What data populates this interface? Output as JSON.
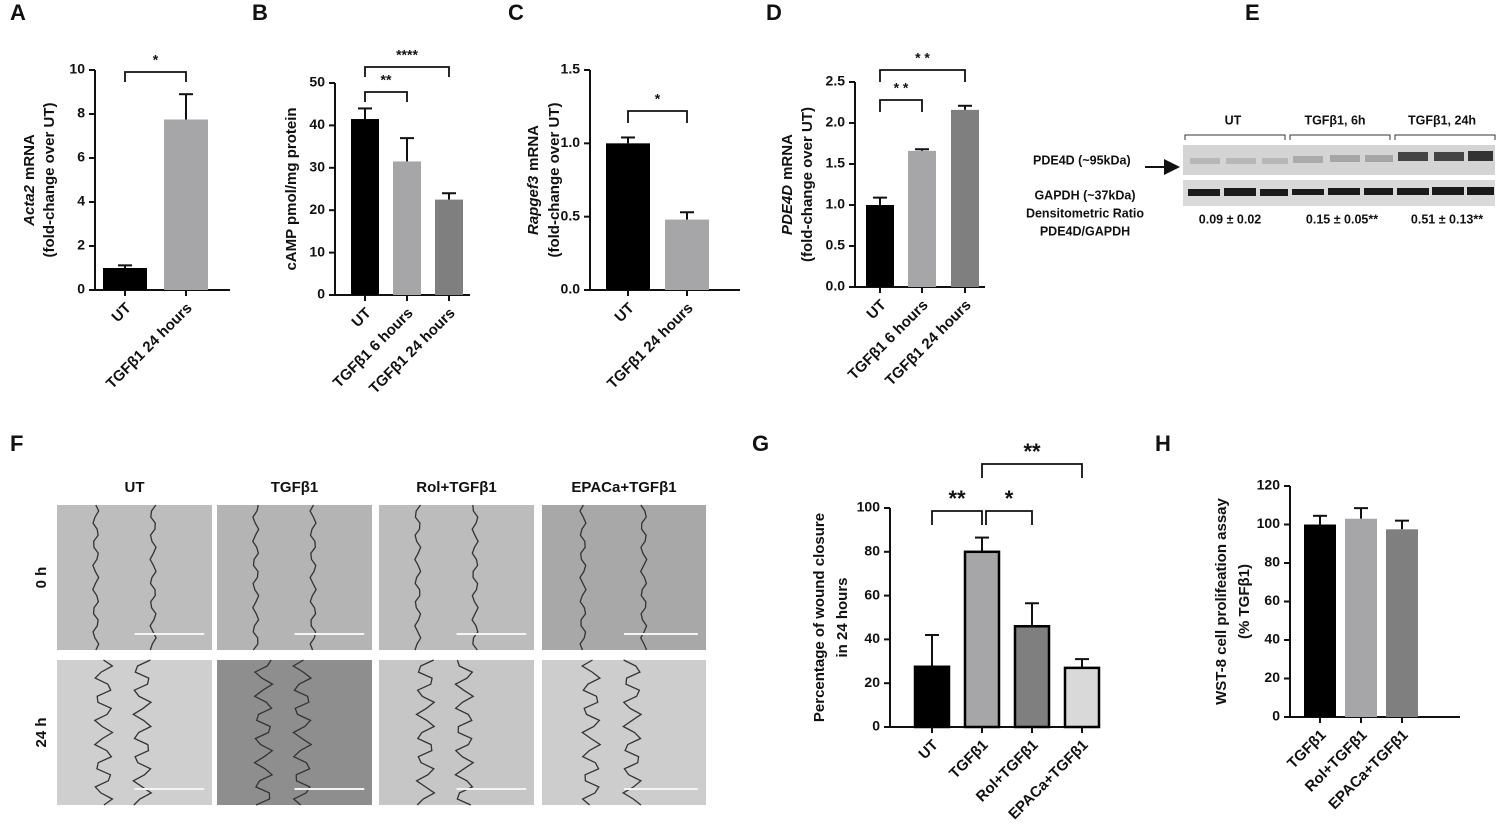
{
  "chart_data": [
    {
      "type": "bar",
      "panel_label": "A",
      "ylabel": {
        "gene": "Acta2",
        "suffix": "mRNA",
        "line2": "(fold-change over UT)"
      },
      "categories": [
        "UT",
        "TGFβ1 24 hours"
      ],
      "values": [
        1.0,
        7.75
      ],
      "errors": [
        0.12,
        1.15
      ],
      "colors": [
        "#000000",
        "#a6a6a8"
      ],
      "ylim": [
        0,
        10
      ],
      "yticks": [
        0,
        2,
        4,
        6,
        8,
        10
      ],
      "significance": [
        {
          "from": 0,
          "to": 1,
          "label": "*"
        }
      ]
    },
    {
      "type": "bar",
      "panel_label": "B",
      "ylabel": {
        "line1": "cAMP pmol/mg protein"
      },
      "categories": [
        "UT",
        "TGFβ1 6 hours",
        "TGFβ1 24 hours"
      ],
      "values": [
        41.5,
        31.5,
        22.5
      ],
      "errors": [
        2.5,
        5.5,
        1.5
      ],
      "colors": [
        "#000000",
        "#a6a6a8",
        "#7f7f7f"
      ],
      "ylim": [
        0,
        50
      ],
      "yticks": [
        0,
        10,
        20,
        30,
        40,
        50
      ],
      "significance": [
        {
          "from": 0,
          "to": 1,
          "label": "**"
        },
        {
          "from": 0,
          "to": 2,
          "label": "****"
        }
      ]
    },
    {
      "type": "bar",
      "panel_label": "C",
      "ylabel": {
        "gene": "Rapgef3",
        "suffix": "mRNA",
        "line2": "(fold-change over UT)"
      },
      "categories": [
        "UT",
        "TGFβ1 24 hours"
      ],
      "values": [
        1.0,
        0.48
      ],
      "errors": [
        0.04,
        0.05
      ],
      "colors": [
        "#000000",
        "#a6a6a8"
      ],
      "ylim": [
        0,
        1.5
      ],
      "yticks": [
        {
          "value": 0,
          "label": "0.0"
        },
        {
          "value": 0.5,
          "label": "0.5"
        },
        {
          "value": 1,
          "label": "1.0"
        },
        {
          "value": 1.5,
          "label": "1.5"
        }
      ],
      "significance": [
        {
          "from": 0,
          "to": 1,
          "label": "*"
        }
      ]
    },
    {
      "type": "bar",
      "panel_label": "D",
      "ylabel": {
        "gene": "PDE4D",
        "suffix": "mRNA",
        "line2": "(fold-change over UT)"
      },
      "categories": [
        "UT",
        "TGFβ1 6 hours",
        "TGFβ1 24 hours"
      ],
      "values": [
        1.0,
        1.66,
        2.16
      ],
      "errors": [
        0.09,
        0.02,
        0.05
      ],
      "colors": [
        "#000000",
        "#a6a6a8",
        "#7f7f7f"
      ],
      "ylim": [
        0,
        2.5
      ],
      "yticks": [
        {
          "value": 0,
          "label": "0.0"
        },
        {
          "value": 0.5,
          "label": "0.5"
        },
        {
          "value": 1,
          "label": "1.0"
        },
        {
          "value": 1.5,
          "label": "1.5"
        },
        {
          "value": 2,
          "label": "2.0"
        },
        {
          "value": 2.5,
          "label": "2.5"
        }
      ],
      "significance": [
        {
          "from": 0,
          "to": 1,
          "label": "* *"
        },
        {
          "from": 0,
          "to": 2,
          "label": "* *"
        }
      ]
    },
    {
      "type": "bar",
      "panel_label": "G",
      "ylabel": {
        "line1": "Percentage of wound closure",
        "line2": "in 24 hours"
      },
      "categories": [
        "UT",
        "TGFβ1",
        "Rol+TGFβ1",
        "EPACa+TGFβ1"
      ],
      "values": [
        27.5,
        80,
        46,
        27
      ],
      "errors": [
        14.5,
        6.5,
        10.5,
        4
      ],
      "colors": [
        "#000000",
        "#a6a6a8",
        "#7f7f7f",
        "#d9d9d9"
      ],
      "edgecolor": "#000000",
      "ylim": [
        0,
        100
      ],
      "yticks": [
        0,
        20,
        40,
        60,
        80,
        100
      ],
      "significance": [
        {
          "from": 0,
          "to": 1,
          "label": "**"
        },
        {
          "from": 1,
          "to": 2,
          "label": "*"
        },
        {
          "from": 1,
          "to": 3,
          "label": "**"
        }
      ]
    },
    {
      "type": "bar",
      "panel_label": "H",
      "ylabel": {
        "line1": "WST-8 cell prolifeation assay",
        "line2": "(% TGFβ1)"
      },
      "categories": [
        "TGFβ1",
        "Rol+TGFβ1",
        "EPACa+TGFβ1"
      ],
      "values": [
        100,
        103,
        97.5
      ],
      "errors": [
        4.5,
        5.5,
        4.5
      ],
      "colors": [
        "#000000",
        "#a6a6a8",
        "#7f7f7f"
      ],
      "ylim": [
        0,
        120
      ],
      "yticks": [
        0,
        20,
        40,
        60,
        80,
        100,
        120
      ],
      "significance": []
    }
  ],
  "blot": {
    "panel_label": "E",
    "groups": [
      "UT",
      "TGFβ1, 6h",
      "TGFβ1, 24h"
    ],
    "band_top": "PDE4D (~95kDa)",
    "band_bottom": "GAPDH (~37kDa)",
    "ratio_title": [
      "Densitometric Ratio",
      "PDE4D/GAPDH"
    ],
    "ratios": [
      "0.09 ± 0.02",
      "0.15 ± 0.05**",
      "0.51 ± 0.13**"
    ]
  },
  "microscopy": {
    "panel_label": "F",
    "columns": [
      "UT",
      "TGFβ1",
      "Rol+TGFβ1",
      "EPACa+TGFβ1"
    ],
    "rows": [
      "0 h",
      "24 h"
    ]
  }
}
